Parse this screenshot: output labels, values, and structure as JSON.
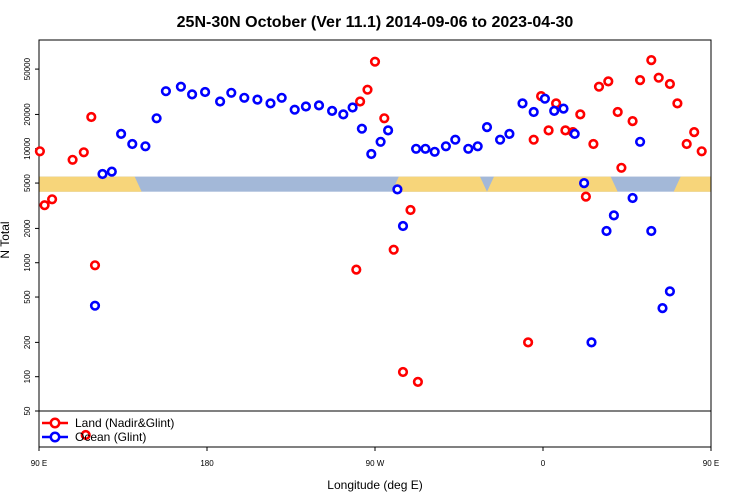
{
  "colors": {
    "land": "#ff0000",
    "ocean": "#0000ff",
    "band_ocean": "#a3b8d8",
    "band_land": "#f7d57a"
  },
  "chart_data": {
    "type": "scatter",
    "title": "25N-30N October (Ver 11.1)   2014-09-06 to 2023-04-30",
    "xlabel": "Longitude (deg E)",
    "ylabel": "N Total",
    "ylog": true,
    "ylim": [
      50,
      90000
    ],
    "grid": false,
    "legend_position": "bottom-left",
    "x_range_deg_east": [
      90,
      450
    ],
    "x_ticks": [
      {
        "x": 90,
        "label": "90 E"
      },
      {
        "x": 180,
        "label": "180"
      },
      {
        "x": 270,
        "label": "90 W"
      },
      {
        "x": 360,
        "label": "0"
      },
      {
        "x": 450,
        "label": "90 E"
      },
      {
        "x": 540,
        "label": "180"
      }
    ],
    "y_ticks": [
      50,
      100,
      200,
      500,
      1000,
      2000,
      5000,
      10000,
      20000,
      50000
    ],
    "band": {
      "y_low": 4200,
      "y_high": 5700,
      "land_longitudes": [
        [
          -81,
          -30
        ],
        [
          -30,
          40
        ],
        [
          70,
          145
        ]
      ]
    },
    "series": [
      {
        "name": "Land (Nadir&Glint)",
        "color": "#ff0000",
        "points": [
          [
            90.5,
            9500
          ],
          [
            93,
            3200
          ],
          [
            97,
            3600
          ],
          [
            108,
            8000
          ],
          [
            114,
            9300
          ],
          [
            118,
            19000
          ],
          [
            120,
            950
          ],
          [
            260,
            870
          ],
          [
            262,
            26000
          ],
          [
            266,
            33000
          ],
          [
            270,
            58000
          ],
          [
            275,
            18500
          ],
          [
            280,
            1300
          ],
          [
            285,
            110
          ],
          [
            289,
            2900
          ],
          [
            293,
            90
          ],
          [
            352,
            200
          ],
          [
            355,
            12000
          ],
          [
            359,
            29000
          ],
          [
            363,
            14500
          ],
          [
            367,
            25000
          ],
          [
            372,
            14500
          ],
          [
            376,
            14000
          ],
          [
            380,
            20000
          ],
          [
            383,
            3800
          ],
          [
            387,
            11000
          ],
          [
            390,
            35000
          ],
          [
            395,
            39000
          ],
          [
            400,
            21000
          ],
          [
            402,
            6800
          ],
          [
            408,
            17500
          ],
          [
            412,
            40000
          ],
          [
            418,
            60000
          ],
          [
            422,
            42000
          ],
          [
            428,
            37000
          ],
          [
            432,
            25000
          ],
          [
            437,
            11000
          ],
          [
            441,
            14000
          ],
          [
            445,
            9500
          ],
          [
            452,
            3200
          ],
          [
            456,
            3600
          ],
          [
            466,
            8000
          ],
          [
            472,
            9300
          ],
          [
            478,
            19000
          ],
          [
            481,
            950
          ]
        ]
      },
      {
        "name": "Ocean (Glint)",
        "color": "#0000ff",
        "points": [
          [
            120,
            420
          ],
          [
            124,
            6000
          ],
          [
            129,
            6300
          ],
          [
            134,
            13500
          ],
          [
            140,
            11000
          ],
          [
            147,
            10500
          ],
          [
            153,
            18500
          ],
          [
            158,
            32000
          ],
          [
            166,
            35000
          ],
          [
            172,
            30000
          ],
          [
            179,
            31500
          ],
          [
            187,
            26000
          ],
          [
            193,
            31000
          ],
          [
            200,
            28000
          ],
          [
            207,
            27000
          ],
          [
            214,
            25000
          ],
          [
            220,
            28000
          ],
          [
            227,
            22000
          ],
          [
            233,
            23500
          ],
          [
            240,
            24000
          ],
          [
            247,
            21500
          ],
          [
            253,
            20000
          ],
          [
            258,
            23000
          ],
          [
            263,
            15000
          ],
          [
            268,
            9000
          ],
          [
            273,
            11500
          ],
          [
            277,
            14500
          ],
          [
            282,
            4400
          ],
          [
            285,
            2100
          ],
          [
            292,
            10000
          ],
          [
            297,
            10000
          ],
          [
            302,
            9400
          ],
          [
            308,
            10500
          ],
          [
            313,
            12000
          ],
          [
            320,
            10000
          ],
          [
            325,
            10500
          ],
          [
            330,
            15500
          ],
          [
            337,
            12000
          ],
          [
            342,
            13500
          ],
          [
            349,
            25000
          ],
          [
            355,
            21000
          ],
          [
            361,
            27500
          ],
          [
            366,
            21500
          ],
          [
            371,
            22500
          ],
          [
            377,
            13500
          ],
          [
            382,
            5000
          ],
          [
            386,
            200
          ],
          [
            394,
            1900
          ],
          [
            398,
            2600
          ],
          [
            408,
            3700
          ],
          [
            412,
            11500
          ],
          [
            418,
            1900
          ],
          [
            424,
            400
          ],
          [
            428,
            560
          ],
          [
            478,
            420
          ],
          [
            482,
            6000
          ],
          [
            487,
            6300
          ],
          [
            492,
            13500
          ],
          [
            498,
            11000
          ],
          [
            505,
            10500
          ],
          [
            512,
            18500
          ],
          [
            518,
            32000
          ],
          [
            524,
            35000
          ],
          [
            530,
            30000
          ],
          [
            536,
            31500
          ],
          [
            542,
            26000
          ],
          [
            546,
            31000
          ]
        ]
      }
    ]
  }
}
